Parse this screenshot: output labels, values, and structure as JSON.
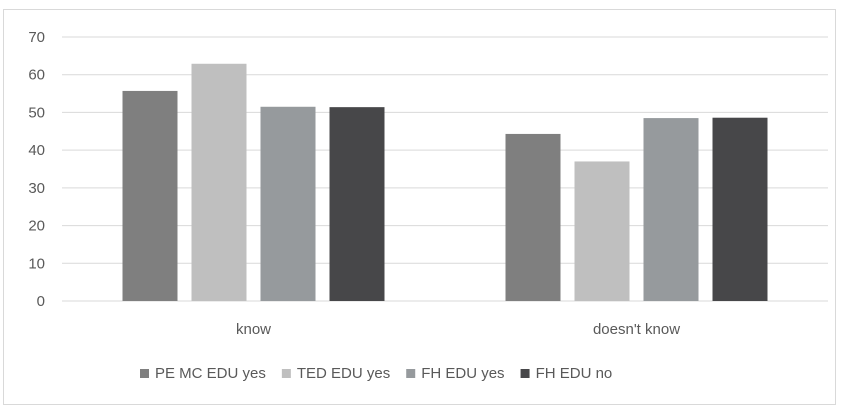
{
  "chart_data": {
    "type": "bar",
    "categories": [
      "know",
      "doesn't know"
    ],
    "series": [
      {
        "name": "PE MC EDU yes",
        "values": [
          55.7,
          44.3
        ],
        "color": "#7f7f7f"
      },
      {
        "name": "TED EDU yes",
        "values": [
          62.9,
          37.0
        ],
        "color": "#bfbfbf"
      },
      {
        "name": "FH EDU yes",
        "values": [
          51.5,
          48.5
        ],
        "color": "#969a9d"
      },
      {
        "name": "FH EDU no",
        "values": [
          51.4,
          48.6
        ],
        "color": "#474749"
      }
    ],
    "ylim": [
      0,
      70
    ],
    "yticks": [
      "0",
      "10",
      "20",
      "30",
      "40",
      "50",
      "60",
      "70"
    ],
    "grid": true,
    "grid_color": "#d9d9d9",
    "legend_position": "bottom"
  }
}
